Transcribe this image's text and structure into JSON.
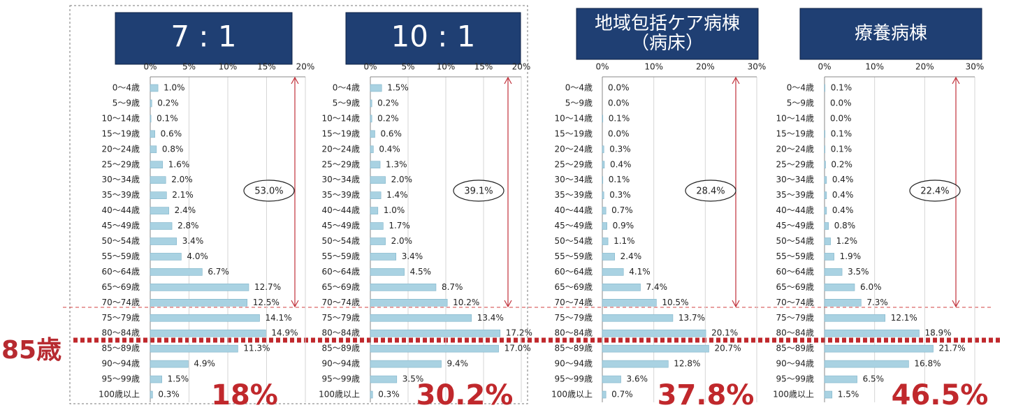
{
  "left_label": "85歳",
  "chart_data": [
    {
      "type": "bar",
      "orientation": "horizontal",
      "title": [
        "7 : 1"
      ],
      "categories": [
        "0～4歳",
        "5～9歳",
        "10～14歳",
        "15～19歳",
        "20～24歳",
        "25～29歳",
        "30～34歳",
        "35～39歳",
        "40～44歳",
        "45～49歳",
        "50～54歳",
        "55～59歳",
        "60～64歳",
        "65～69歳",
        "70～74歳",
        "75～79歳",
        "80～84歳",
        "85～89歳",
        "90～94歳",
        "95～99歳",
        "100歳以上"
      ],
      "values": [
        1.0,
        0.2,
        0.1,
        0.6,
        0.8,
        1.6,
        2.0,
        2.1,
        2.4,
        2.8,
        3.4,
        4.0,
        6.7,
        12.7,
        12.5,
        14.1,
        14.9,
        11.3,
        4.9,
        1.5,
        0.3
      ],
      "value_labels": [
        "1.0%",
        "0.2%",
        "0.1%",
        "0.6%",
        "0.8%",
        "1.6%",
        "2.0%",
        "2.1%",
        "2.4%",
        "2.8%",
        "3.4%",
        "4.0%",
        "6.7%",
        "12.7%",
        "12.5%",
        "14.1%",
        "14.9%",
        "11.3%",
        "4.9%",
        "1.5%",
        "0.3%"
      ],
      "xlim": [
        0,
        20
      ],
      "xticks": [
        {
          "value": 0,
          "label": "0%"
        },
        {
          "value": 5,
          "label": "5%"
        },
        {
          "value": 10,
          "label": "10%"
        },
        {
          "value": 15,
          "label": "15%"
        },
        {
          "value": 20,
          "label": "20%"
        }
      ],
      "color": "#a9d2e2",
      "grid": true,
      "circled_label": "53.0%",
      "bottom_label": "18%"
    },
    {
      "type": "bar",
      "orientation": "horizontal",
      "title": [
        "10 : 1"
      ],
      "categories": [
        "0～4歳",
        "5～9歳",
        "10～14歳",
        "15～19歳",
        "20～24歳",
        "25～29歳",
        "30～34歳",
        "35～39歳",
        "40～44歳",
        "45～49歳",
        "50～54歳",
        "55～59歳",
        "60～64歳",
        "65～69歳",
        "70～74歳",
        "75～79歳",
        "80～84歳",
        "85～89歳",
        "90～94歳",
        "95～99歳",
        "100歳以上"
      ],
      "values": [
        1.5,
        0.2,
        0.2,
        0.6,
        0.4,
        1.3,
        2.0,
        1.4,
        1.0,
        1.7,
        2.0,
        3.4,
        4.5,
        8.7,
        10.2,
        13.4,
        17.2,
        17.0,
        9.4,
        3.5,
        0.3
      ],
      "value_labels": [
        "1.5%",
        "0.2%",
        "0.2%",
        "0.6%",
        "0.4%",
        "1.3%",
        "2.0%",
        "1.4%",
        "1.0%",
        "1.7%",
        "2.0%",
        "3.4%",
        "4.5%",
        "8.7%",
        "10.2%",
        "13.4%",
        "17.2%",
        "17.0%",
        "9.4%",
        "3.5%",
        "0.3%"
      ],
      "xlim": [
        0,
        20
      ],
      "xticks": [
        {
          "value": 0,
          "label": "0%"
        },
        {
          "value": 5,
          "label": "5%"
        },
        {
          "value": 10,
          "label": "10%"
        },
        {
          "value": 15,
          "label": "15%"
        },
        {
          "value": 20,
          "label": "20%"
        }
      ],
      "color": "#a9d2e2",
      "grid": true,
      "circled_label": "39.1%",
      "bottom_label": "30.2%"
    },
    {
      "type": "bar",
      "orientation": "horizontal",
      "title": [
        "地域包括ケア病棟",
        "（病床）"
      ],
      "categories": [
        "0～4歳",
        "5～9歳",
        "10～14歳",
        "15～19歳",
        "20～24歳",
        "25～29歳",
        "30～34歳",
        "35～39歳",
        "40～44歳",
        "45～49歳",
        "50～54歳",
        "55～59歳",
        "60～64歳",
        "65～69歳",
        "70～74歳",
        "75～79歳",
        "80～84歳",
        "85～89歳",
        "90～94歳",
        "95～99歳",
        "100歳以上"
      ],
      "values": [
        0.0,
        0.0,
        0.1,
        0.0,
        0.3,
        0.4,
        0.1,
        0.3,
        0.7,
        0.9,
        1.1,
        2.4,
        4.1,
        7.4,
        10.5,
        13.7,
        20.1,
        20.7,
        12.8,
        3.6,
        0.7
      ],
      "value_labels": [
        "0.0%",
        "0.0%",
        "0.1%",
        "0.0%",
        "0.3%",
        "0.4%",
        "0.1%",
        "0.3%",
        "0.7%",
        "0.9%",
        "1.1%",
        "2.4%",
        "4.1%",
        "7.4%",
        "10.5%",
        "13.7%",
        "20.1%",
        "20.7%",
        "12.8%",
        "3.6%",
        "0.7%"
      ],
      "xlim": [
        0,
        30
      ],
      "xticks": [
        {
          "value": 0,
          "label": "0%"
        },
        {
          "value": 10,
          "label": "10%"
        },
        {
          "value": 20,
          "label": "20%"
        },
        {
          "value": 30,
          "label": "30%"
        }
      ],
      "color": "#a9d2e2",
      "grid": true,
      "circled_label": "28.4%",
      "bottom_label": "37.8%"
    },
    {
      "type": "bar",
      "orientation": "horizontal",
      "title": [
        "療養病棟"
      ],
      "categories": [
        "0～4歳",
        "5～9歳",
        "10～14歳",
        "15～19歳",
        "20～24歳",
        "25～29歳",
        "30～34歳",
        "35～39歳",
        "40～44歳",
        "45～49歳",
        "50～54歳",
        "55～59歳",
        "60～64歳",
        "65～69歳",
        "70～74歳",
        "75～79歳",
        "80～84歳",
        "85～89歳",
        "90～94歳",
        "95～99歳",
        "100歳以上"
      ],
      "values": [
        0.1,
        0.0,
        0.0,
        0.1,
        0.1,
        0.2,
        0.4,
        0.4,
        0.4,
        0.8,
        1.2,
        1.9,
        3.5,
        6.0,
        7.3,
        12.1,
        18.9,
        21.7,
        16.8,
        6.5,
        1.5
      ],
      "value_labels": [
        "0.1%",
        "0.0%",
        "0.0%",
        "0.1%",
        "0.1%",
        "0.2%",
        "0.4%",
        "0.4%",
        "0.4%",
        "0.8%",
        "1.2%",
        "1.9%",
        "3.5%",
        "6.0%",
        "7.3%",
        "12.1%",
        "18.9%",
        "21.7%",
        "16.8%",
        "6.5%",
        "1.5%"
      ],
      "xlim": [
        0,
        30
      ],
      "xticks": [
        {
          "value": 0,
          "label": "0%"
        },
        {
          "value": 10,
          "label": "10%"
        },
        {
          "value": 20,
          "label": "20%"
        },
        {
          "value": 30,
          "label": "30%"
        }
      ],
      "color": "#a9d2e2",
      "grid": true,
      "circled_label": "22.4%",
      "bottom_label": "46.5%"
    }
  ]
}
